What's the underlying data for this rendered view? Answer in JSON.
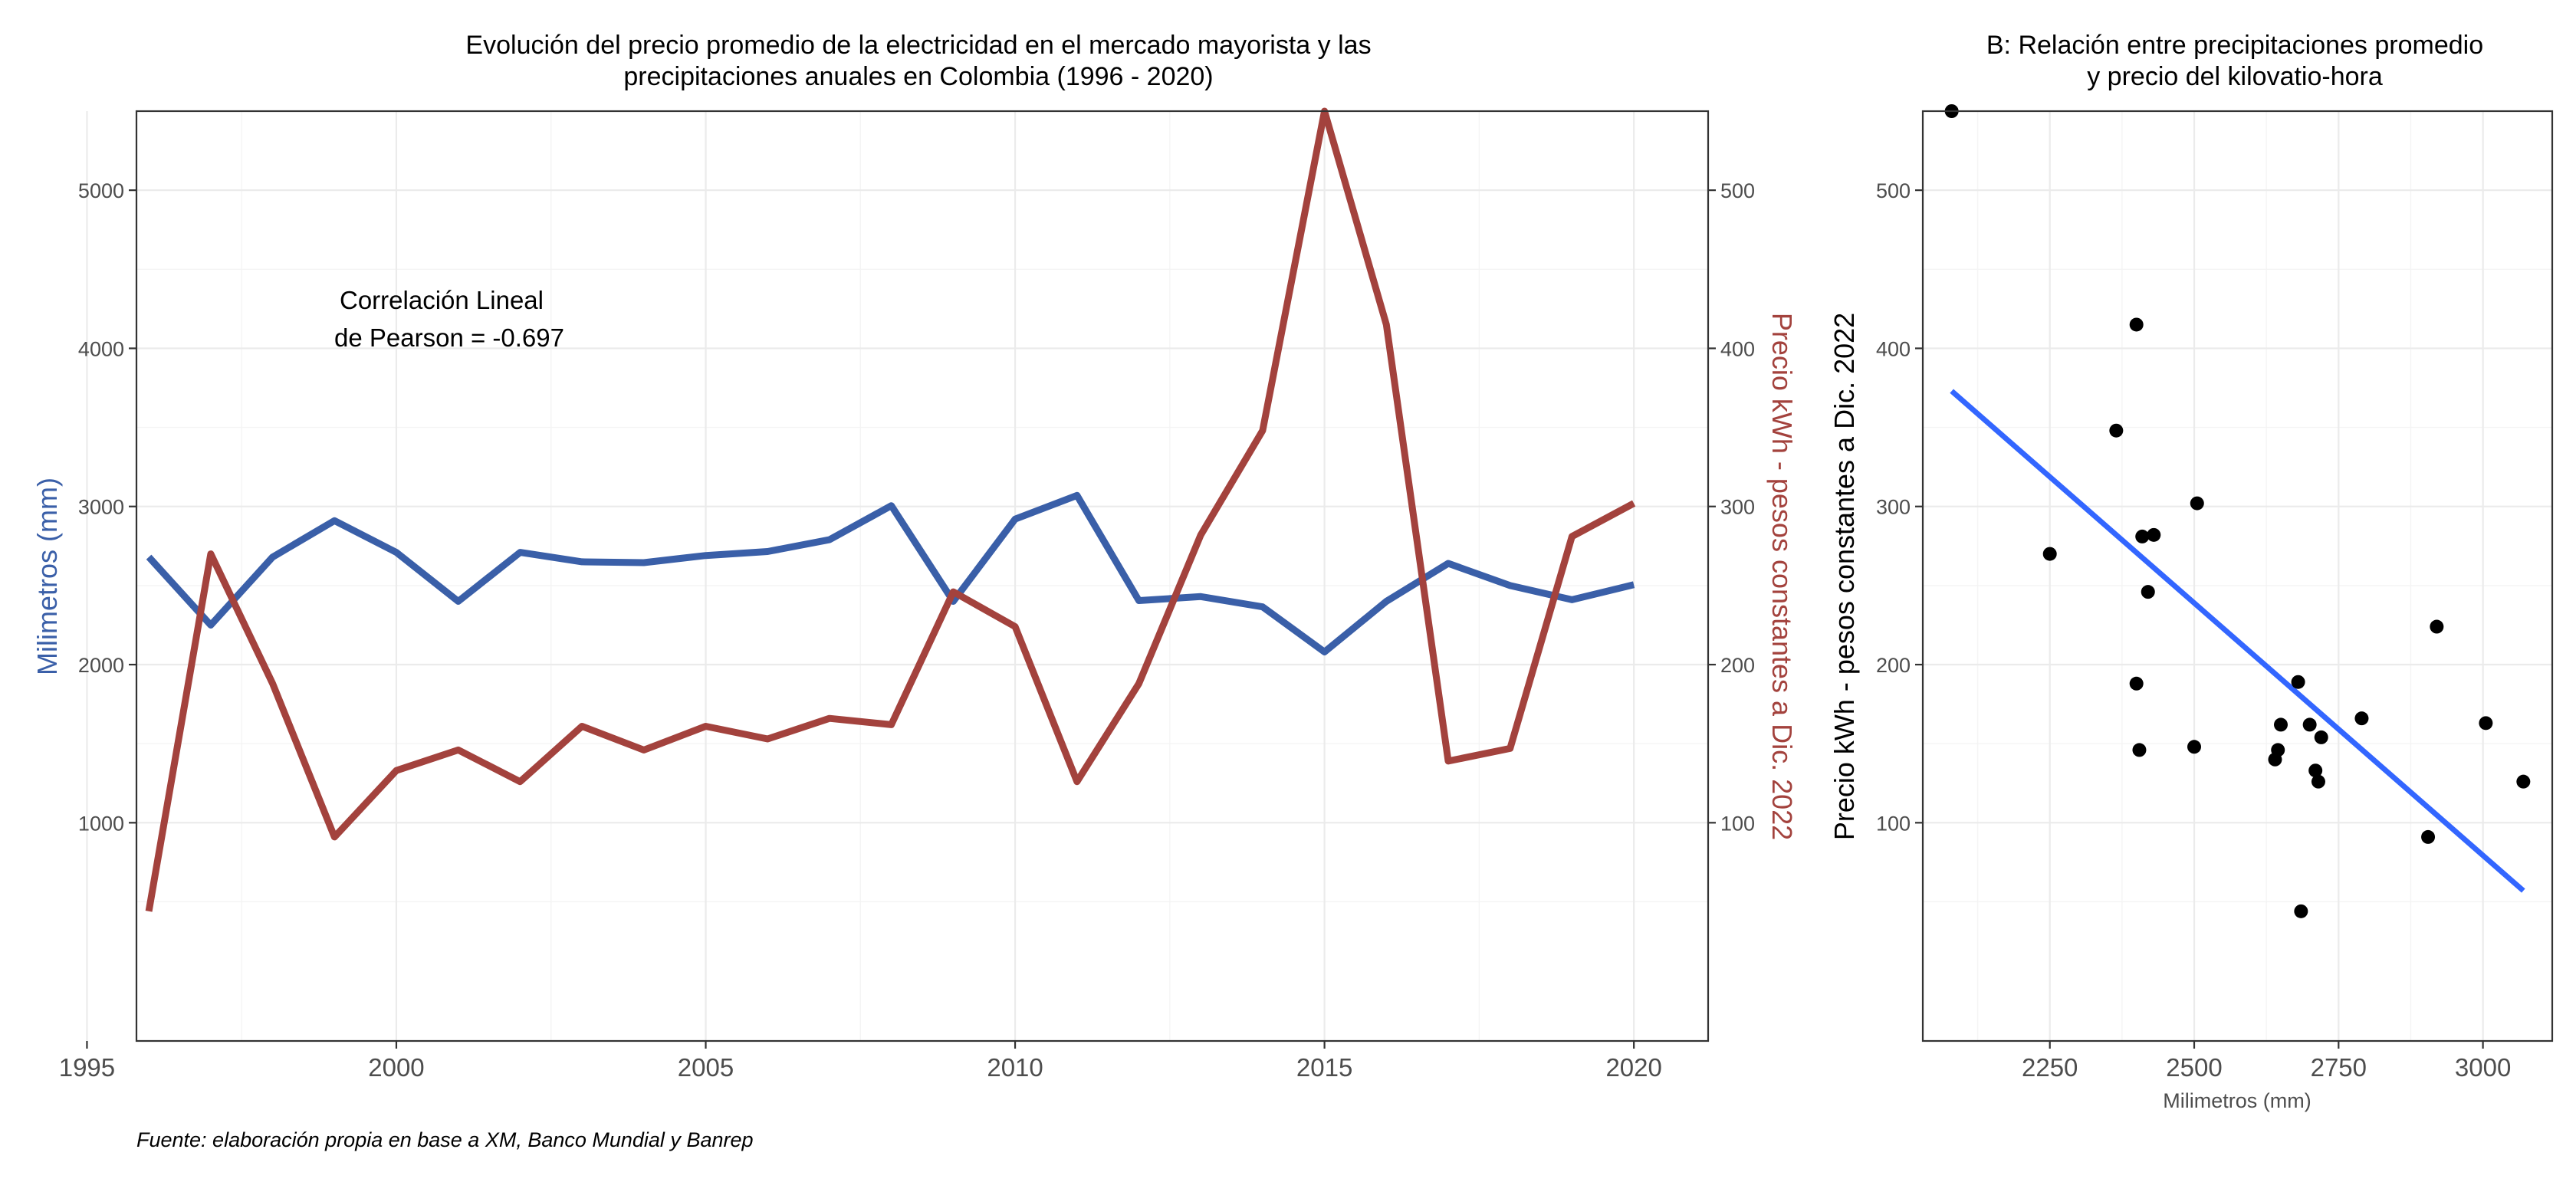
{
  "caption": "Fuente: elaboración propia en base a XM, Banco Mundial y Banrep",
  "colors": {
    "rain": "#3A5FA8",
    "price": "#A3423D",
    "fit": "#3366FF",
    "points": "#000000"
  },
  "chart_data": [
    {
      "type": "line",
      "title_lines": [
        "Evolución del precio promedio de la electricidad en el mercado mayorista y las",
        "precipitaciones anuales en Colombia (1996 - 2020)"
      ],
      "xlabel": "",
      "ylabel_left": "Milimetros (mm)",
      "ylabel_right": "Precio kWh - pesos constantes a Dic. 2022",
      "annotation_lines": [
        "Correlación Lineal",
        "de Pearson = -0.697"
      ],
      "xlim": [
        1995.8,
        2021.2
      ],
      "ylim_left": [
        -380,
        5500
      ],
      "ylim_right": [
        -38,
        550
      ],
      "x_ticks": [
        1995,
        2000,
        2005,
        2010,
        2015,
        2020
      ],
      "y_ticks_left": [
        1000,
        2000,
        3000,
        4000,
        5000
      ],
      "y_ticks_right": [
        100,
        200,
        300,
        400,
        500
      ],
      "grid": true,
      "x": [
        1996,
        1997,
        1998,
        1999,
        2000,
        2001,
        2002,
        2003,
        2004,
        2005,
        2006,
        2007,
        2008,
        2009,
        2010,
        2011,
        2012,
        2013,
        2014,
        2015,
        2016,
        2017,
        2018,
        2019,
        2020
      ],
      "series": [
        {
          "name": "Milimetros (mm)",
          "axis": "left",
          "color": "#3A5FA8",
          "values": [
            2680,
            2250,
            2680,
            2910,
            2710,
            2400,
            2710,
            2650,
            2645,
            2690,
            2715,
            2790,
            3005,
            2400,
            2920,
            3070,
            2405,
            2430,
            2365,
            2080,
            2400,
            2640,
            2500,
            2410,
            2505
          ]
        },
        {
          "name": "Precio kWh - pesos constantes a Dic. 2022",
          "axis": "right",
          "color": "#A3423D",
          "values": [
            44,
            270,
            188,
            91,
            133,
            146,
            126,
            161,
            146,
            161,
            153,
            166,
            162,
            246,
            224,
            126,
            188,
            282,
            348,
            550,
            415,
            139,
            147,
            281,
            302
          ]
        }
      ]
    },
    {
      "type": "scatter",
      "title_lines": [
        "B: Relación entre precipitaciones promedio",
        "y precio del kilovatio-hora"
      ],
      "xlabel": "Milimetros (mm)",
      "ylabel": "Precio kWh - pesos constantes a Dic. 2022",
      "xlim": [
        2030,
        3120
      ],
      "ylim": [
        -38,
        550
      ],
      "x_ticks": [
        2250,
        2500,
        2750,
        3000
      ],
      "y_ticks": [
        100,
        200,
        300,
        400,
        500
      ],
      "grid": true,
      "points": [
        [
          2080,
          550
        ],
        [
          2250,
          270
        ],
        [
          2365,
          348
        ],
        [
          2400,
          415
        ],
        [
          2400,
          188
        ],
        [
          2405,
          146
        ],
        [
          2410,
          281
        ],
        [
          2430,
          282
        ],
        [
          2420,
          246
        ],
        [
          2500,
          148
        ],
        [
          2505,
          302
        ],
        [
          2640,
          140
        ],
        [
          2645,
          146
        ],
        [
          2650,
          162
        ],
        [
          2680,
          189
        ],
        [
          2685,
          44
        ],
        [
          2700,
          162
        ],
        [
          2710,
          133
        ],
        [
          2715,
          126
        ],
        [
          2720,
          154
        ],
        [
          2790,
          166
        ],
        [
          2905,
          91
        ],
        [
          2920,
          224
        ],
        [
          3005,
          163
        ],
        [
          3070,
          126
        ]
      ],
      "fit_line": {
        "x": [
          2080,
          3070
        ],
        "y": [
          373,
          57
        ]
      }
    }
  ]
}
